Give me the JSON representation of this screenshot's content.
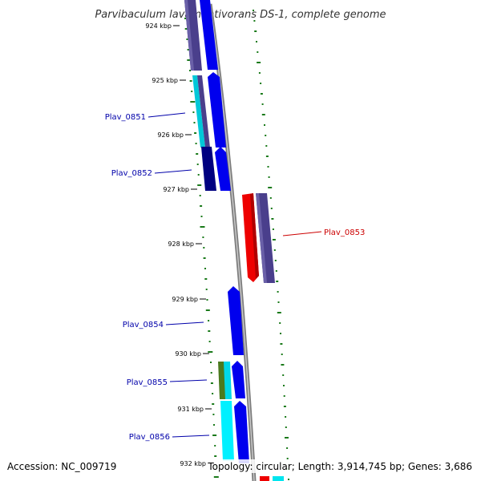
{
  "title": "Parvibaculum lavamentivorans DS-1, complete genome",
  "accession": "Accession: NC_009719",
  "summary": "Topology: circular; Length: 3,914,745 bp; Genes: 3,686",
  "ticks": [
    "924 kbp",
    "925 kbp",
    "926 kbp",
    "927 kbp",
    "928 kbp",
    "929 kbp",
    "930 kbp",
    "931 kbp",
    "932 kbp"
  ],
  "gene_labels": [
    {
      "name": "Plav_0851",
      "color": "#0000aa"
    },
    {
      "name": "Plav_0852",
      "color": "#0000aa"
    },
    {
      "name": "Plav_0853",
      "color": "#cc0000"
    },
    {
      "name": "Plav_0854",
      "color": "#0000aa"
    },
    {
      "name": "Plav_0855",
      "color": "#0000aa"
    },
    {
      "name": "Plav_0856",
      "color": "#0000aa"
    }
  ],
  "colors": {
    "backbone": "#888888",
    "forward_cds": "#0000ee",
    "reverse_cds": "#ee0000",
    "dark_blue": "#000080",
    "slate": "#4a3f8c",
    "cyan": "#00e5ee",
    "olive": "#4b7a1e",
    "dots": "#1a7a1a"
  }
}
